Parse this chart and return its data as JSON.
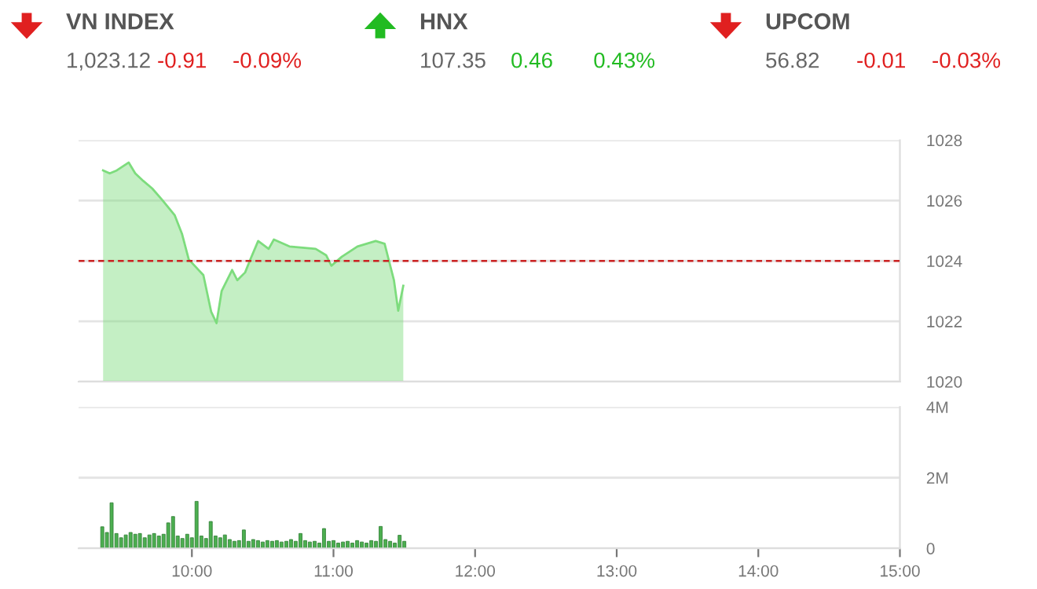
{
  "chart_data": [
    {
      "type": "other",
      "categories": [
        "VN INDEX",
        "HNX",
        "UPCOM"
      ],
      "values": [
        -0.91,
        0.46,
        -0.01
      ],
      "data_labels": true,
      "annotations": [
        "1,023.12",
        "107.35",
        "56.82",
        "-0.09%",
        "0.43%",
        "-0.03%"
      ],
      "colors": [
        "#e02020",
        "#22bb22",
        "#e02020"
      ]
    },
    {
      "type": "area",
      "tick_labels": "y",
      "grid": "y",
      "xlim": [
        9.2,
        15
      ],
      "ylim": [
        1020,
        1028
      ],
      "yticks": [
        1020,
        1022,
        1024,
        1026,
        1028
      ],
      "ref_lines": [
        {
          "axis": "y",
          "value": 1024,
          "color": "#cc2222",
          "line_style": "dashed"
        }
      ],
      "series": [
        {
          "color": "#7ddc7d",
          "x": [
            9.373,
            9.42,
            9.47,
            9.554,
            9.6,
            9.657,
            9.72,
            9.787,
            9.878,
            9.93,
            9.978,
            10.081,
            10.136,
            10.174,
            10.21,
            10.284,
            10.321,
            10.376,
            10.413,
            10.468,
            10.542,
            10.579,
            10.689,
            10.874,
            10.948,
            10.985,
            11.059,
            11.169,
            11.298,
            11.361,
            11.391,
            11.427,
            11.457,
            11.493
          ],
          "values": [
            1027.0,
            1026.9,
            1027.0,
            1027.26,
            1026.9,
            1026.65,
            1026.4,
            1026.04,
            1025.52,
            1024.9,
            1024.05,
            1023.53,
            1022.32,
            1021.94,
            1023.0,
            1023.7,
            1023.36,
            1023.62,
            1024.05,
            1024.66,
            1024.4,
            1024.71,
            1024.48,
            1024.4,
            1024.19,
            1023.84,
            1024.14,
            1024.48,
            1024.66,
            1024.57,
            1024.02,
            1023.36,
            1022.35,
            1023.18
          ]
        }
      ]
    },
    {
      "type": "bar",
      "grid": "y",
      "xlim": [
        9.2,
        15
      ],
      "xticks": [
        {
          "value": 10,
          "label": "10:00"
        },
        {
          "value": 11,
          "label": "11:00"
        },
        {
          "value": 12,
          "label": "12:00"
        },
        {
          "value": 13,
          "label": "13:00"
        },
        {
          "value": 14,
          "label": "14:00"
        },
        {
          "value": 15,
          "label": "15:00"
        }
      ],
      "ylim": [
        0,
        4
      ],
      "yticks": [
        0,
        {
          "value": 2,
          "label": "2M"
        },
        {
          "value": 4,
          "label": "4M"
        }
      ],
      "series": [
        {
          "color": "#4caf50",
          "x": [
            9.367,
            9.4,
            9.433,
            9.467,
            9.5,
            9.533,
            9.567,
            9.6,
            9.633,
            9.667,
            9.7,
            9.733,
            9.767,
            9.8,
            9.833,
            9.867,
            9.9,
            9.933,
            9.967,
            10,
            10.033,
            10.067,
            10.1,
            10.133,
            10.167,
            10.2,
            10.233,
            10.267,
            10.3,
            10.333,
            10.367,
            10.4,
            10.433,
            10.467,
            10.5,
            10.533,
            10.567,
            10.6,
            10.633,
            10.667,
            10.7,
            10.733,
            10.767,
            10.8,
            10.833,
            10.867,
            10.9,
            10.933,
            10.967,
            11,
            11.033,
            11.067,
            11.1,
            11.133,
            11.167,
            11.2,
            11.233,
            11.267,
            11.3,
            11.333,
            11.367,
            11.4,
            11.433,
            11.467,
            11.5
          ],
          "values": [
            0.61,
            0.45,
            1.29,
            0.42,
            0.3,
            0.38,
            0.45,
            0.4,
            0.42,
            0.3,
            0.38,
            0.42,
            0.35,
            0.4,
            0.72,
            0.9,
            0.35,
            0.28,
            0.4,
            0.3,
            1.33,
            0.35,
            0.28,
            0.76,
            0.35,
            0.3,
            0.38,
            0.25,
            0.2,
            0.22,
            0.52,
            0.2,
            0.25,
            0.22,
            0.18,
            0.22,
            0.2,
            0.22,
            0.18,
            0.2,
            0.25,
            0.2,
            0.42,
            0.22,
            0.18,
            0.2,
            0.15,
            0.56,
            0.2,
            0.22,
            0.15,
            0.18,
            0.2,
            0.15,
            0.22,
            0.18,
            0.15,
            0.22,
            0.2,
            0.62,
            0.25,
            0.2,
            0.15,
            0.37,
            0.2
          ]
        }
      ]
    }
  ]
}
